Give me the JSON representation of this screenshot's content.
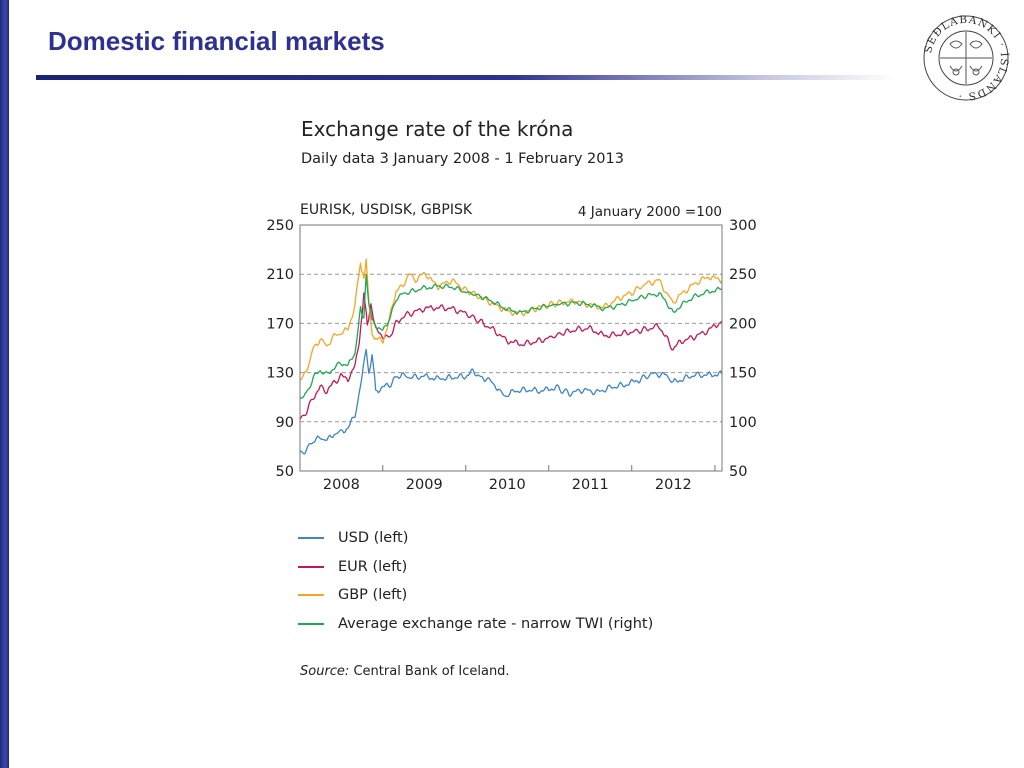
{
  "slide": {
    "title": "Domestic financial markets"
  },
  "logo": {
    "ring_text": "SEÐLABANKI · ÍSLANDS ·",
    "icon": "central-bank-seal"
  },
  "colors": {
    "title": "#2e3192",
    "usd": "#3d85c6",
    "eur": "#c2185b",
    "gbp": "#f5a623",
    "twi": "#1fa84f",
    "grid": "#999999"
  },
  "chart_data": {
    "type": "line",
    "title": "Exchange rate of the króna",
    "subtitle": "Daily data 3 January 2008 - 1 February 2013",
    "left_axis_label": "EURISK, USDISK, GBPISK",
    "right_axis_label": "4 January 2000 =100",
    "x_range": [
      "2008-01-03",
      "2013-02-01"
    ],
    "x_tick_labels": [
      "2008",
      "2009",
      "2010",
      "2011",
      "2012"
    ],
    "y_left": {
      "min": 50,
      "max": 250,
      "ticks": [
        50,
        90,
        130,
        170,
        210,
        250
      ]
    },
    "y_right": {
      "min": 50,
      "max": 300,
      "ticks": [
        50,
        100,
        150,
        200,
        250,
        300
      ]
    },
    "gridlines": "dashed",
    "legend_position": "below",
    "series": [
      {
        "name": "USD (left)",
        "axis": "left",
        "color": "#3d85c6",
        "points": [
          [
            "2008-01-03",
            63
          ],
          [
            "2008-02-01",
            68
          ],
          [
            "2008-03-01",
            74
          ],
          [
            "2008-04-01",
            77
          ],
          [
            "2008-05-01",
            75
          ],
          [
            "2008-06-01",
            80
          ],
          [
            "2008-07-01",
            82
          ],
          [
            "2008-08-01",
            85
          ],
          [
            "2008-09-01",
            95
          ],
          [
            "2008-10-01",
            125
          ],
          [
            "2008-10-20",
            150
          ],
          [
            "2008-11-01",
            130
          ],
          [
            "2008-11-15",
            145
          ],
          [
            "2008-12-01",
            115
          ],
          [
            "2009-01-01",
            118
          ],
          [
            "2009-02-01",
            120
          ],
          [
            "2009-03-01",
            127
          ],
          [
            "2009-04-01",
            128
          ],
          [
            "2009-05-01",
            126
          ],
          [
            "2009-07-01",
            127
          ],
          [
            "2009-09-01",
            125
          ],
          [
            "2009-11-01",
            126
          ],
          [
            "2010-01-01",
            127
          ],
          [
            "2010-02-01",
            131
          ],
          [
            "2010-03-01",
            127
          ],
          [
            "2010-04-01",
            125
          ],
          [
            "2010-05-01",
            122
          ],
          [
            "2010-06-01",
            114
          ],
          [
            "2010-07-01",
            111
          ],
          [
            "2010-08-01",
            115
          ],
          [
            "2010-10-01",
            116
          ],
          [
            "2010-12-01",
            115
          ],
          [
            "2011-02-01",
            118
          ],
          [
            "2011-04-01",
            113
          ],
          [
            "2011-06-01",
            116
          ],
          [
            "2011-08-01",
            114
          ],
          [
            "2011-10-01",
            118
          ],
          [
            "2011-12-01",
            120
          ],
          [
            "2012-02-01",
            124
          ],
          [
            "2012-04-01",
            129
          ],
          [
            "2012-06-01",
            128
          ],
          [
            "2012-07-01",
            122
          ],
          [
            "2012-08-01",
            124
          ],
          [
            "2012-10-01",
            128
          ],
          [
            "2012-12-01",
            128
          ],
          [
            "2013-02-01",
            129
          ]
        ]
      },
      {
        "name": "EUR (left)",
        "axis": "left",
        "color": "#c2185b",
        "points": [
          [
            "2008-01-03",
            92
          ],
          [
            "2008-02-01",
            98
          ],
          [
            "2008-03-01",
            110
          ],
          [
            "2008-04-01",
            118
          ],
          [
            "2008-05-01",
            115
          ],
          [
            "2008-06-01",
            122
          ],
          [
            "2008-07-01",
            127
          ],
          [
            "2008-08-01",
            125
          ],
          [
            "2008-09-01",
            135
          ],
          [
            "2008-09-20",
            155
          ],
          [
            "2008-10-10",
            195
          ],
          [
            "2008-10-25",
            170
          ],
          [
            "2008-11-10",
            185
          ],
          [
            "2008-12-01",
            165
          ],
          [
            "2009-01-01",
            160
          ],
          [
            "2009-02-01",
            158
          ],
          [
            "2009-03-01",
            170
          ],
          [
            "2009-04-01",
            176
          ],
          [
            "2009-05-01",
            178
          ],
          [
            "2009-07-01",
            182
          ],
          [
            "2009-09-01",
            183
          ],
          [
            "2009-11-01",
            182
          ],
          [
            "2010-01-01",
            178
          ],
          [
            "2010-03-01",
            172
          ],
          [
            "2010-05-01",
            165
          ],
          [
            "2010-07-01",
            156
          ],
          [
            "2010-09-01",
            153
          ],
          [
            "2010-11-01",
            155
          ],
          [
            "2011-01-01",
            158
          ],
          [
            "2011-03-01",
            162
          ],
          [
            "2011-05-01",
            165
          ],
          [
            "2011-07-01",
            166
          ],
          [
            "2011-09-01",
            160
          ],
          [
            "2011-11-01",
            161
          ],
          [
            "2012-01-01",
            163
          ],
          [
            "2012-03-01",
            165
          ],
          [
            "2012-05-01",
            168
          ],
          [
            "2012-06-01",
            158
          ],
          [
            "2012-07-01",
            149
          ],
          [
            "2012-08-01",
            155
          ],
          [
            "2012-10-01",
            159
          ],
          [
            "2012-12-01",
            164
          ],
          [
            "2013-02-01",
            172
          ]
        ]
      },
      {
        "name": "GBP (left)",
        "axis": "left",
        "color": "#f5a623",
        "points": [
          [
            "2008-01-03",
            126
          ],
          [
            "2008-02-01",
            130
          ],
          [
            "2008-03-01",
            150
          ],
          [
            "2008-04-01",
            157
          ],
          [
            "2008-05-01",
            152
          ],
          [
            "2008-06-01",
            160
          ],
          [
            "2008-07-01",
            162
          ],
          [
            "2008-08-01",
            165
          ],
          [
            "2008-09-01",
            185
          ],
          [
            "2008-09-25",
            220
          ],
          [
            "2008-10-10",
            205
          ],
          [
            "2008-10-20",
            222
          ],
          [
            "2008-11-01",
            185
          ],
          [
            "2008-11-15",
            160
          ],
          [
            "2008-12-01",
            158
          ],
          [
            "2009-01-01",
            155
          ],
          [
            "2009-02-01",
            175
          ],
          [
            "2009-03-01",
            195
          ],
          [
            "2009-04-01",
            202
          ],
          [
            "2009-05-01",
            210
          ],
          [
            "2009-06-01",
            205
          ],
          [
            "2009-07-01",
            212
          ],
          [
            "2009-08-01",
            205
          ],
          [
            "2009-09-01",
            200
          ],
          [
            "2009-11-01",
            205
          ],
          [
            "2010-01-01",
            197
          ],
          [
            "2010-03-01",
            192
          ],
          [
            "2010-05-01",
            186
          ],
          [
            "2010-07-01",
            180
          ],
          [
            "2010-09-01",
            178
          ],
          [
            "2010-11-01",
            182
          ],
          [
            "2011-01-01",
            185
          ],
          [
            "2011-03-01",
            187
          ],
          [
            "2011-05-01",
            188
          ],
          [
            "2011-07-01",
            185
          ],
          [
            "2011-09-01",
            183
          ],
          [
            "2011-11-01",
            190
          ],
          [
            "2012-01-01",
            195
          ],
          [
            "2012-03-01",
            202
          ],
          [
            "2012-05-01",
            205
          ],
          [
            "2012-06-01",
            195
          ],
          [
            "2012-07-01",
            187
          ],
          [
            "2012-08-01",
            193
          ],
          [
            "2012-10-01",
            202
          ],
          [
            "2012-12-01",
            208
          ],
          [
            "2013-02-01",
            205
          ]
        ]
      },
      {
        "name": "Average exchange rate - narrow TWI (right)",
        "axis": "right",
        "color": "#1fa84f",
        "points": [
          [
            "2008-01-03",
            125
          ],
          [
            "2008-02-01",
            128
          ],
          [
            "2008-03-01",
            145
          ],
          [
            "2008-04-01",
            152
          ],
          [
            "2008-05-01",
            148
          ],
          [
            "2008-06-01",
            155
          ],
          [
            "2008-07-01",
            160
          ],
          [
            "2008-08-01",
            157
          ],
          [
            "2008-09-01",
            170
          ],
          [
            "2008-09-25",
            215
          ],
          [
            "2008-10-10",
            205
          ],
          [
            "2008-10-20",
            250
          ],
          [
            "2008-11-01",
            220
          ],
          [
            "2008-11-15",
            205
          ],
          [
            "2008-12-01",
            198
          ],
          [
            "2009-01-01",
            192
          ],
          [
            "2009-02-01",
            205
          ],
          [
            "2009-03-01",
            225
          ],
          [
            "2009-04-01",
            230
          ],
          [
            "2009-05-01",
            232
          ],
          [
            "2009-07-01",
            236
          ],
          [
            "2009-09-01",
            238
          ],
          [
            "2009-11-01",
            237
          ],
          [
            "2010-01-01",
            232
          ],
          [
            "2010-03-01",
            228
          ],
          [
            "2010-05-01",
            222
          ],
          [
            "2010-07-01",
            214
          ],
          [
            "2010-09-01",
            211
          ],
          [
            "2010-11-01",
            215
          ],
          [
            "2011-01-01",
            218
          ],
          [
            "2011-03-01",
            220
          ],
          [
            "2011-05-01",
            221
          ],
          [
            "2011-07-01",
            219
          ],
          [
            "2011-09-01",
            215
          ],
          [
            "2011-11-01",
            218
          ],
          [
            "2012-01-01",
            223
          ],
          [
            "2012-03-01",
            228
          ],
          [
            "2012-05-01",
            230
          ],
          [
            "2012-06-01",
            222
          ],
          [
            "2012-07-01",
            210
          ],
          [
            "2012-08-01",
            218
          ],
          [
            "2012-10-01",
            227
          ],
          [
            "2012-12-01",
            232
          ],
          [
            "2013-02-01",
            235
          ]
        ]
      }
    ]
  },
  "source": {
    "label": "Source:",
    "text": "Central Bank of Iceland."
  }
}
